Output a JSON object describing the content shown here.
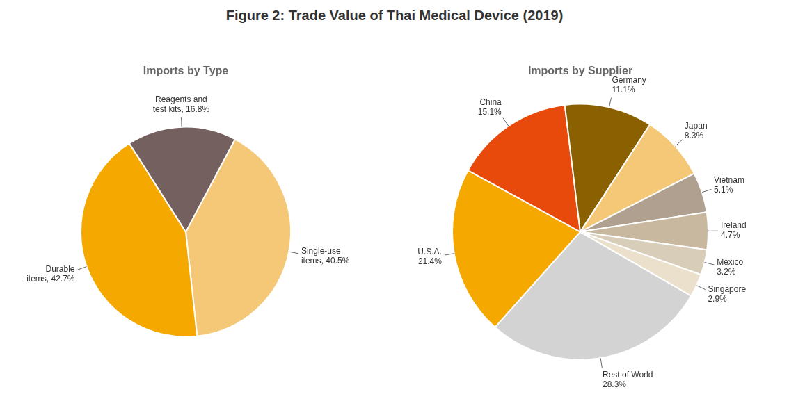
{
  "title": "Figure 2:   Trade Value of Thai Medical Device (2019)",
  "chart_data": [
    {
      "type": "pie",
      "title": "Imports by Type",
      "values": [
        40.5,
        42.7,
        16.8
      ],
      "value_labels": [
        "Single-use\nitems, 40.5%",
        "Durable\nitems, 42.7%",
        "Reagents and\ntest kits, 16.8%"
      ],
      "colors": [
        "#F5C878",
        "#F5A800",
        "#756060"
      ],
      "data_labels": true
    },
    {
      "type": "pie",
      "title": "Imports by Supplier",
      "values": [
        28.3,
        21.4,
        15.1,
        11.1,
        8.3,
        5.1,
        4.7,
        3.2,
        2.9
      ],
      "value_labels": [
        "Rest of World\n28.3%",
        "U.S.A.\n21.4%",
        "China\n15.1%",
        "Germany\n11.1%",
        "Japan\n8.3%",
        "Vietnam\n5.1%",
        "Ireland\n4.7%",
        "Mexico\n3.2%",
        "Singapore\n2.9%"
      ],
      "colors": [
        "#D3D3D3",
        "#F5A800",
        "#E84A0C",
        "#8B6000",
        "#F5C878",
        "#B0A090",
        "#C8B8A0",
        "#D8CDB8",
        "#EAE0CC"
      ],
      "data_labels": true
    }
  ]
}
